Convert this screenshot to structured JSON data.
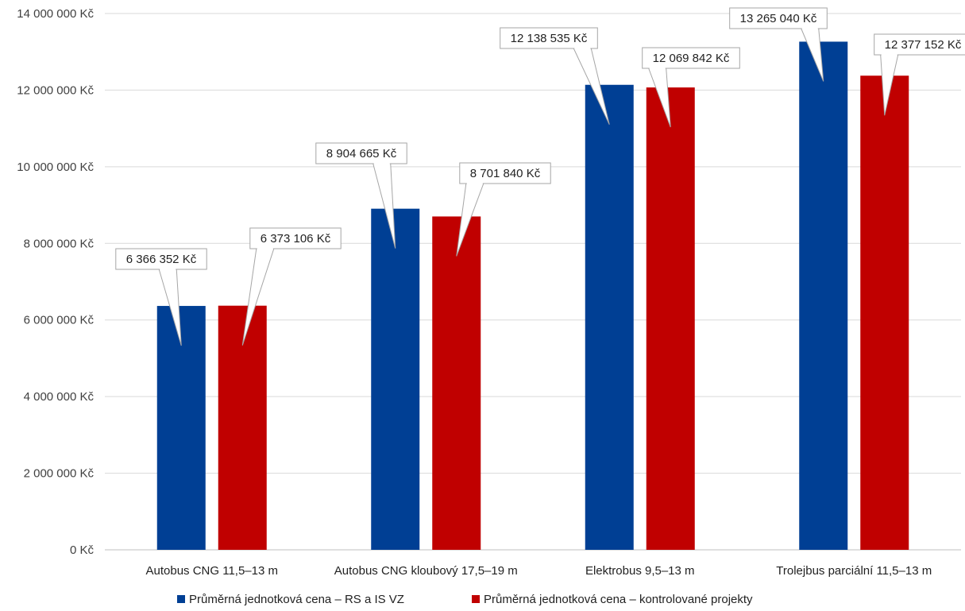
{
  "chart_data": {
    "type": "bar",
    "categories": [
      "Autobus CNG 11,5–13 m",
      "Autobus CNG kloubový 17,5–19 m",
      "Elektrobus 9,5–13 m",
      "Trolejbus parciální  11,5–13 m"
    ],
    "series": [
      {
        "name": "Průměrná jednotková cena – RS a IS VZ",
        "color": "#003f94",
        "values": [
          6366352,
          8904665,
          12138535,
          13265040
        ],
        "labels": [
          "6 366 352 Kč",
          "8 904 665 Kč",
          "12 138 535 Kč",
          "13 265 040 Kč"
        ]
      },
      {
        "name": "Průměrná jednotková cena – kontrolované projekty",
        "color": "#c00000",
        "values": [
          6373106,
          8701840,
          12069842,
          12377152
        ],
        "labels": [
          "6 373 106 Kč",
          "8 701 840 Kč",
          "12 069 842 Kč",
          "12 377 152 Kč"
        ]
      }
    ],
    "ylim": [
      0,
      14000000
    ],
    "yticks": [
      {
        "value": 0,
        "label": "0 Kč"
      },
      {
        "value": 2000000,
        "label": "2 000 000 Kč"
      },
      {
        "value": 4000000,
        "label": "4 000 000 Kč"
      },
      {
        "value": 6000000,
        "label": "6 000 000 Kč"
      },
      {
        "value": 8000000,
        "label": "8 000 000 Kč"
      },
      {
        "value": 10000000,
        "label": "10 000 000 Kč"
      },
      {
        "value": 12000000,
        "label": "12 000 000 Kč"
      },
      {
        "value": 14000000,
        "label": "14 000 000 Kč"
      }
    ],
    "grid": true,
    "legend_position": "bottom",
    "title": "",
    "xlabel": "",
    "ylabel": ""
  }
}
